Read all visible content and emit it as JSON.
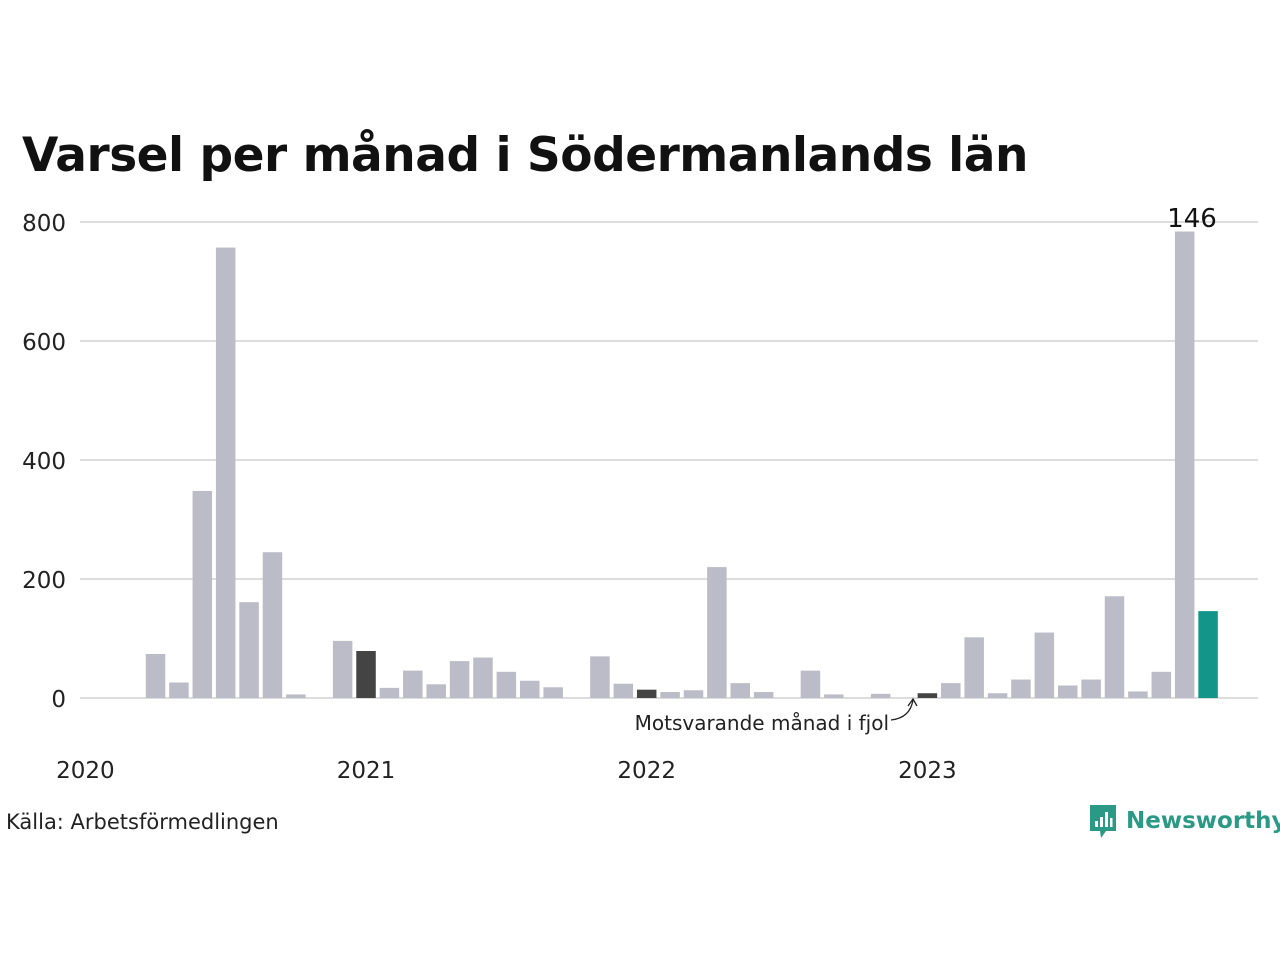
{
  "title": "Varsel per månad i Södermanlands län",
  "source": "Källa: Arbetsförmedlingen",
  "brand": {
    "name": "Newsworthy",
    "icon": "newsworthy-logo-icon"
  },
  "colors": {
    "default": "#bcbbc8",
    "last_year": "#444444",
    "current": "#12968a",
    "grid": "#dddddd",
    "brand": "#2a9a86"
  },
  "chart_data": {
    "type": "bar",
    "title": "Varsel per månad i Södermanlands län",
    "xlabel": "",
    "ylabel": "",
    "ylim": [
      0,
      800
    ],
    "y_ticks": [
      0,
      200,
      400,
      600,
      800
    ],
    "grid": true,
    "x_tick_labels": [
      {
        "label": "2020",
        "index": 0
      },
      {
        "label": "2021",
        "index": 12
      },
      {
        "label": "2022",
        "index": 24
      },
      {
        "label": "2023",
        "index": 36
      }
    ],
    "values": [
      0,
      0,
      0,
      74,
      26,
      348,
      757,
      161,
      245,
      6,
      0,
      96,
      79,
      17,
      46,
      23,
      62,
      68,
      44,
      29,
      18,
      0,
      70,
      24,
      14,
      10,
      13,
      220,
      25,
      10,
      0,
      46,
      6,
      0,
      7,
      0,
      8,
      25,
      102,
      8,
      31,
      110,
      21,
      31,
      171,
      11,
      44,
      784,
      146
    ],
    "highlight_last_year_indices": [
      12,
      24,
      36
    ],
    "highlight_current_index": 48,
    "value_label": "146",
    "annotation": "Motsvarande månad i fjol"
  }
}
